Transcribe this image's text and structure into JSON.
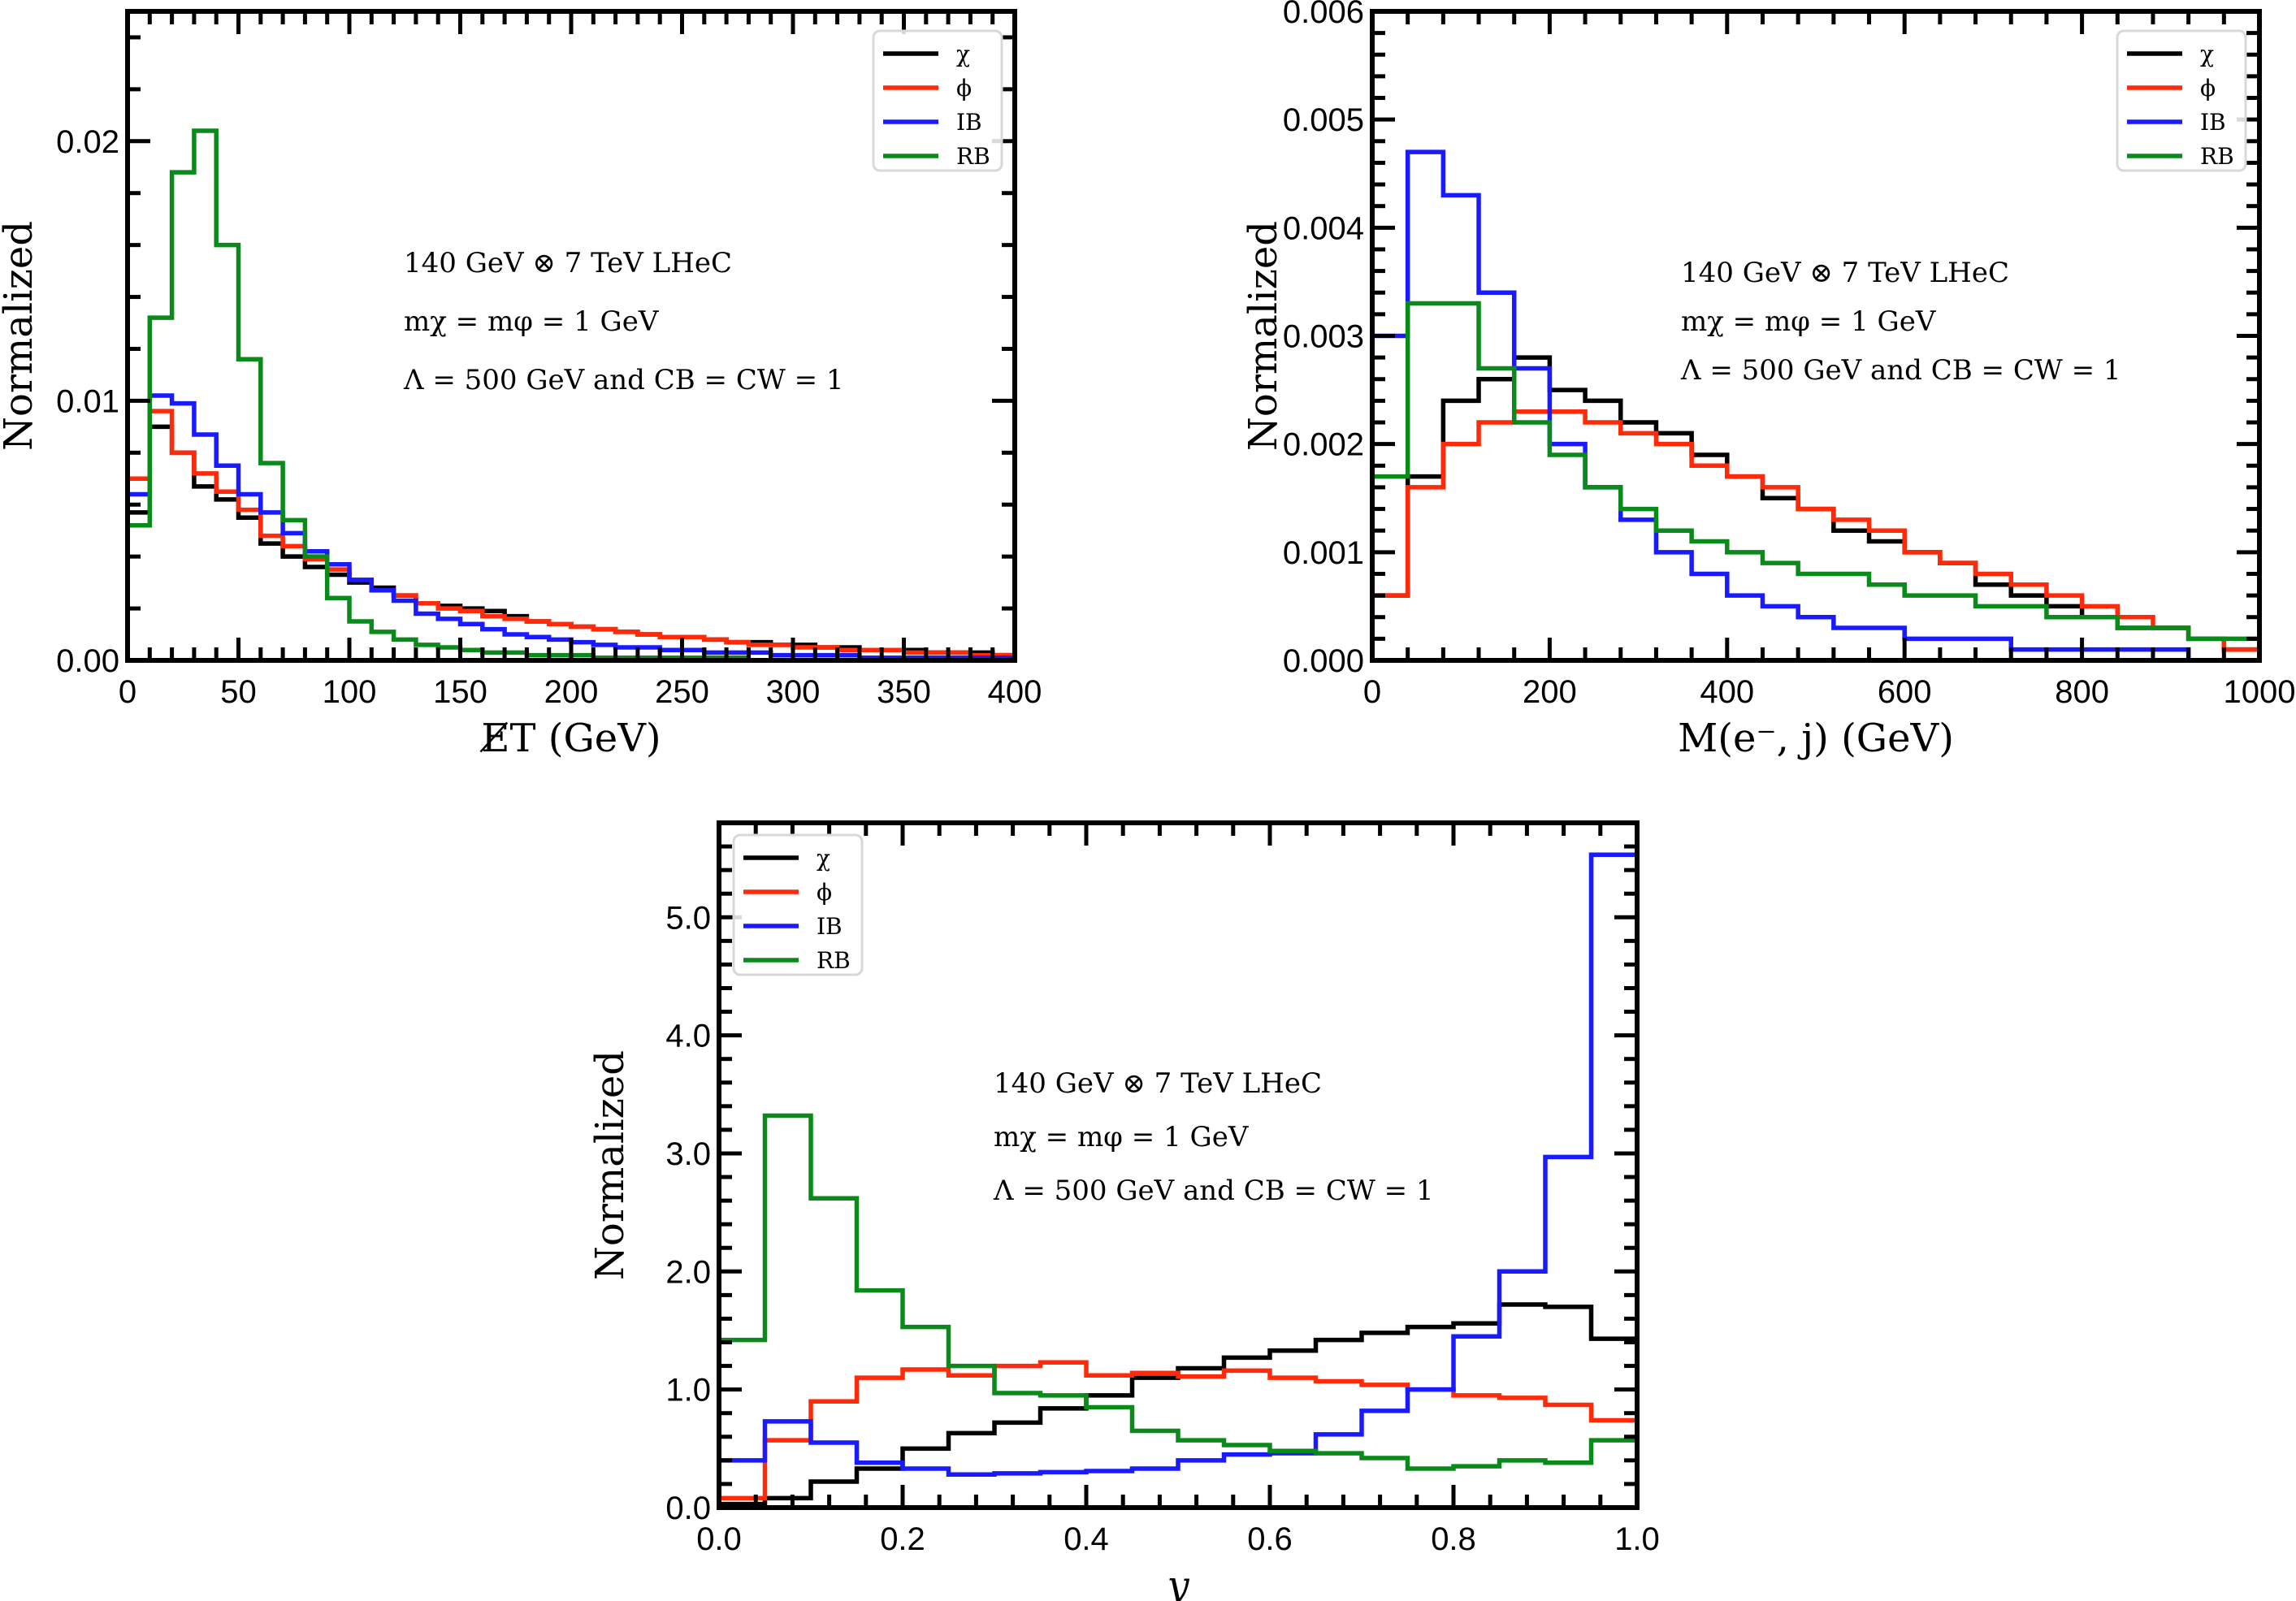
{
  "figure": {
    "annotation_lines": [
      "140 GeV ⊗ 7 TeV LHeC",
      "mχ = mφ = 1 GeV",
      "Λ = 500 GeV and CB = CW = 1"
    ]
  },
  "legend": {
    "entries": [
      {
        "label": "χ",
        "color": "#000000"
      },
      {
        "label": "ϕ",
        "color": "#ff2a0a"
      },
      {
        "label": "IB",
        "color": "#1a1aff"
      },
      {
        "label": "RB",
        "color": "#0a8a1a"
      }
    ]
  },
  "chart_data": [
    {
      "type": "line",
      "style": "step-histogram",
      "title": "",
      "xlabel": "E̸T (GeV)",
      "ylabel": "Normalized",
      "xlim": [
        0,
        400
      ],
      "ylim": [
        0,
        0.025
      ],
      "xticks": [
        0,
        50,
        100,
        150,
        200,
        250,
        300,
        350,
        400
      ],
      "xtick_labels": [
        "0",
        "50",
        "100",
        "150",
        "200",
        "250",
        "300",
        "350",
        "400"
      ],
      "yticks": [
        0.0,
        0.01,
        0.02
      ],
      "ytick_labels": [
        "0.00",
        "0.01",
        "0.02"
      ],
      "bin_width": 10,
      "legend_position": "top-right",
      "annotation_lines": [
        "140 GeV ⊗ 7 TeV LHeC",
        "mχ = mφ = 1 GeV",
        "Λ = 500 GeV and CB = CW = 1"
      ],
      "series": [
        {
          "name": "χ",
          "values": [
            0.0057,
            0.009,
            0.008,
            0.0067,
            0.0062,
            0.0055,
            0.0045,
            0.004,
            0.0036,
            0.0033,
            0.003,
            0.0028,
            0.0025,
            0.0022,
            0.0021,
            0.002,
            0.0019,
            0.0017,
            0.0015,
            0.0014,
            0.0013,
            0.0012,
            0.0011,
            0.001,
            0.0009,
            0.0009,
            0.0008,
            0.0007,
            0.0007,
            0.0006,
            0.0006,
            0.0005,
            0.0005,
            0.0004,
            0.0004,
            0.0004,
            0.0003,
            0.0003,
            0.0003,
            0.0002
          ]
        },
        {
          "name": "ϕ",
          "values": [
            0.007,
            0.0096,
            0.008,
            0.0072,
            0.0065,
            0.0058,
            0.0048,
            0.0044,
            0.0039,
            0.0035,
            0.0031,
            0.0027,
            0.0025,
            0.0022,
            0.002,
            0.0019,
            0.0017,
            0.0016,
            0.0015,
            0.0014,
            0.0013,
            0.0012,
            0.0011,
            0.001,
            0.0009,
            0.0009,
            0.0008,
            0.0007,
            0.0006,
            0.0006,
            0.0005,
            0.0005,
            0.0004,
            0.0004,
            0.0004,
            0.0003,
            0.0003,
            0.0003,
            0.0002,
            0.0002
          ]
        },
        {
          "name": "IB",
          "values": [
            0.0064,
            0.0102,
            0.0099,
            0.0087,
            0.0075,
            0.0064,
            0.0057,
            0.0049,
            0.0042,
            0.0037,
            0.0031,
            0.0027,
            0.0023,
            0.0018,
            0.0016,
            0.0014,
            0.0012,
            0.001,
            0.0009,
            0.0008,
            0.0007,
            0.0006,
            0.0005,
            0.0005,
            0.0004,
            0.0004,
            0.0003,
            0.0003,
            0.0003,
            0.0002,
            0.0002,
            0.0002,
            0.0002,
            0.0001,
            0.0001,
            0.0001,
            0.0001,
            0.0001,
            0.0001,
            0.0001
          ]
        },
        {
          "name": "RB",
          "values": [
            0.0052,
            0.0132,
            0.0188,
            0.0204,
            0.016,
            0.0116,
            0.0076,
            0.0054,
            0.004,
            0.0024,
            0.0015,
            0.0011,
            0.0008,
            0.0006,
            0.0005,
            0.0004,
            0.0003,
            0.0003,
            0.0002,
            0.0002,
            0.0002,
            0.0001,
            0.0001,
            0.0001,
            0.0001,
            0.0001,
            0.0001,
            0.0001,
            0.0,
            0.0,
            0.0,
            0.0,
            0.0,
            0.0,
            0.0,
            0.0,
            0.0,
            0.0,
            0.0,
            0.0
          ]
        }
      ]
    },
    {
      "type": "line",
      "style": "step-histogram",
      "title": "",
      "xlabel": "M(e⁻, j) (GeV)",
      "ylabel": "Normalized",
      "xlim": [
        0,
        1000
      ],
      "ylim": [
        0,
        0.006
      ],
      "xticks": [
        0,
        200,
        400,
        600,
        800,
        1000
      ],
      "xtick_labels": [
        "0",
        "200",
        "400",
        "600",
        "800",
        "1000"
      ],
      "yticks": [
        0.0,
        0.001,
        0.002,
        0.003,
        0.004,
        0.005,
        0.006
      ],
      "ytick_labels": [
        "0.000",
        "0.001",
        "0.002",
        "0.003",
        "0.004",
        "0.005",
        "0.006"
      ],
      "bin_width": 40,
      "legend_position": "top-right",
      "annotation_lines": [
        "140 GeV ⊗ 7 TeV LHeC",
        "mχ = mφ = 1 GeV",
        "Λ = 500 GeV and CB = CW = 1"
      ],
      "series": [
        {
          "name": "χ",
          "values": [
            0.0006,
            0.0017,
            0.0024,
            0.0026,
            0.0028,
            0.0025,
            0.0024,
            0.0022,
            0.0021,
            0.0019,
            0.0017,
            0.0015,
            0.0014,
            0.0012,
            0.0011,
            0.001,
            0.0009,
            0.0007,
            0.0006,
            0.0005,
            0.0004,
            0.0003,
            0.0003,
            0.0002,
            0.0001
          ]
        },
        {
          "name": "ϕ",
          "values": [
            0.0006,
            0.0016,
            0.002,
            0.0022,
            0.0023,
            0.0023,
            0.0022,
            0.0021,
            0.002,
            0.0018,
            0.0017,
            0.0016,
            0.0014,
            0.0013,
            0.0012,
            0.001,
            0.0009,
            0.0008,
            0.0007,
            0.0006,
            0.0005,
            0.0004,
            0.0003,
            0.0002,
            0.0001
          ]
        },
        {
          "name": "IB",
          "values": [
            0.003,
            0.0047,
            0.0043,
            0.0034,
            0.0027,
            0.002,
            0.0016,
            0.0013,
            0.001,
            0.0008,
            0.0006,
            0.0005,
            0.0004,
            0.0003,
            0.0003,
            0.0002,
            0.0002,
            0.0002,
            0.0001,
            0.0001,
            0.0001,
            0.0001,
            0.0001,
            0.0,
            0.0
          ]
        },
        {
          "name": "RB",
          "values": [
            0.0017,
            0.0033,
            0.0033,
            0.0027,
            0.0022,
            0.0019,
            0.0016,
            0.0014,
            0.0012,
            0.0011,
            0.001,
            0.0009,
            0.0008,
            0.0008,
            0.0007,
            0.0006,
            0.0006,
            0.0005,
            0.0005,
            0.0004,
            0.0004,
            0.0003,
            0.0003,
            0.0002,
            0.0002
          ]
        }
      ]
    },
    {
      "type": "line",
      "style": "step-histogram",
      "title": "",
      "xlabel": "y",
      "ylabel": "Normalized",
      "xlim": [
        0,
        1.0
      ],
      "ylim": [
        0,
        5.8
      ],
      "xticks": [
        0.0,
        0.2,
        0.4,
        0.6,
        0.8,
        1.0
      ],
      "xtick_labels": [
        "0.0",
        "0.2",
        "0.4",
        "0.6",
        "0.8",
        "1.0"
      ],
      "yticks": [
        0.0,
        1.0,
        2.0,
        3.0,
        4.0,
        5.0
      ],
      "ytick_labels": [
        "0.0",
        "1.0",
        "2.0",
        "3.0",
        "4.0",
        "5.0"
      ],
      "bin_width": 0.05,
      "legend_position": "top-left",
      "annotation_lines": [
        "140 GeV ⊗ 7 TeV LHeC",
        "mχ = mφ = 1 GeV",
        "Λ = 500 GeV and CB = CW = 1"
      ],
      "series": [
        {
          "name": "χ",
          "values": [
            0.03,
            0.08,
            0.22,
            0.33,
            0.5,
            0.63,
            0.72,
            0.84,
            0.95,
            1.1,
            1.18,
            1.27,
            1.33,
            1.42,
            1.48,
            1.53,
            1.56,
            1.72,
            1.7,
            1.43
          ]
        },
        {
          "name": "ϕ",
          "values": [
            0.08,
            0.57,
            0.9,
            1.1,
            1.17,
            1.12,
            1.2,
            1.23,
            1.12,
            1.14,
            1.11,
            1.16,
            1.1,
            1.07,
            1.04,
            1.0,
            0.95,
            0.93,
            0.87,
            0.74
          ]
        },
        {
          "name": "IB",
          "values": [
            0.4,
            0.73,
            0.55,
            0.38,
            0.33,
            0.28,
            0.29,
            0.3,
            0.31,
            0.33,
            0.4,
            0.45,
            0.46,
            0.62,
            0.82,
            1.0,
            1.45,
            2.0,
            2.97,
            5.53
          ]
        },
        {
          "name": "RB",
          "values": [
            1.42,
            3.32,
            2.62,
            1.84,
            1.53,
            1.2,
            0.97,
            0.95,
            0.85,
            0.65,
            0.57,
            0.53,
            0.48,
            0.46,
            0.42,
            0.33,
            0.35,
            0.4,
            0.38,
            0.57
          ]
        }
      ]
    }
  ]
}
